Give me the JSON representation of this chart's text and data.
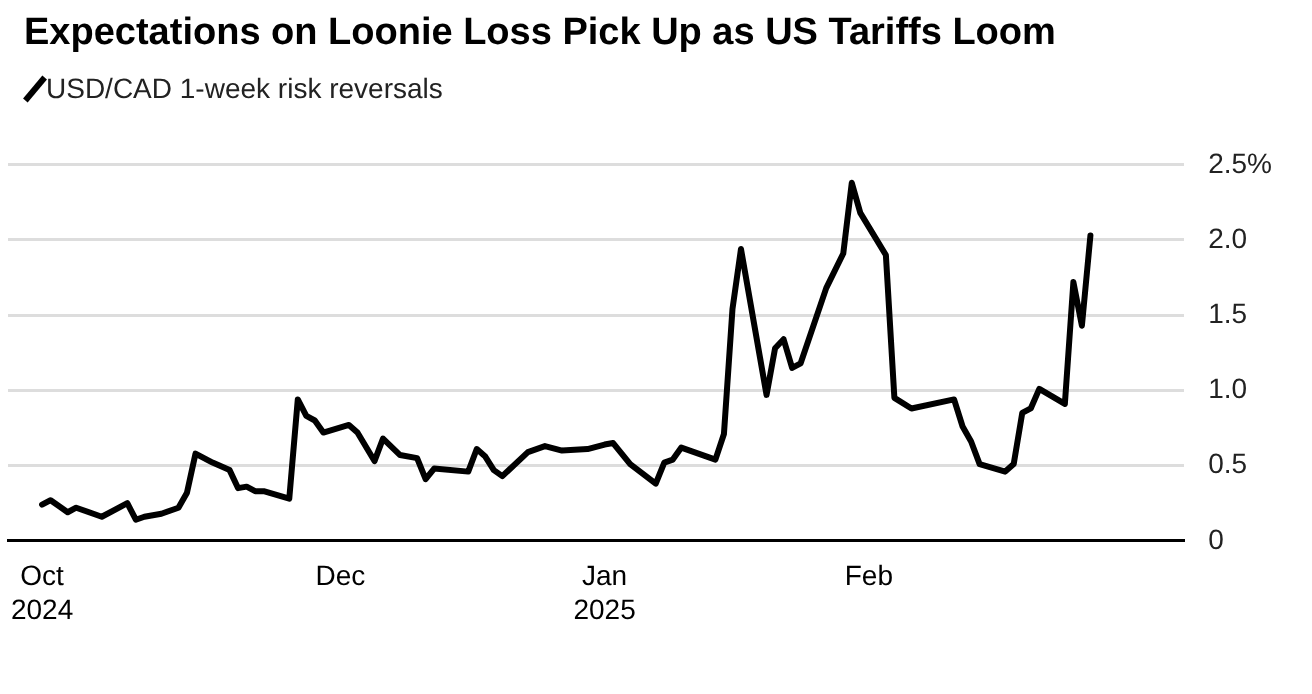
{
  "chart_data": {
    "type": "line",
    "title": "Expectations on Loonie Loss Pick Up as US Tariffs Loom",
    "legend": "top left",
    "grid": "y",
    "marker": "none",
    "line_style": "solid",
    "xlim": [
      "2024-10-23",
      "2025-03-10"
    ],
    "xticks": [
      {
        "value": "2024-10-27",
        "label": "Oct\n2024"
      },
      {
        "value": "2024-12-01",
        "label": "Dec"
      },
      {
        "value": "2025-01-01",
        "label": "Jan\n2025"
      },
      {
        "value": "2025-02-01",
        "label": "Feb"
      }
    ],
    "ylim": [
      0,
      2.5
    ],
    "yticks": [
      0,
      {
        "value": 0.5,
        "label": "0.5"
      },
      {
        "value": 1,
        "label": "1.0"
      },
      {
        "value": 1.5,
        "label": "1.5"
      },
      {
        "value": 2,
        "label": "2.0"
      },
      {
        "value": 2.5,
        "label": "2.5%"
      }
    ],
    "series": [
      {
        "name": "USD/CAD 1-week risk reversals",
        "color": "#000000",
        "x": [
          "2024-10-27",
          "2024-10-28",
          "2024-10-30",
          "2024-10-31",
          "2024-11-03",
          "2024-11-06",
          "2024-11-07",
          "2024-11-08",
          "2024-11-10",
          "2024-11-12",
          "2024-11-13",
          "2024-11-14",
          "2024-11-16",
          "2024-11-18",
          "2024-11-19",
          "2024-11-20",
          "2024-11-21",
          "2024-11-22",
          "2024-11-25",
          "2024-11-26",
          "2024-11-27",
          "2024-11-28",
          "2024-11-29",
          "2024-12-02",
          "2024-12-03",
          "2024-12-05",
          "2024-12-06",
          "2024-12-08",
          "2024-12-10",
          "2024-12-11",
          "2024-12-12",
          "2024-12-16",
          "2024-12-17",
          "2024-12-18",
          "2024-12-19",
          "2024-12-20",
          "2024-12-23",
          "2024-12-25",
          "2024-12-27",
          "2024-12-30",
          "2025-01-01",
          "2025-01-02",
          "2025-01-04",
          "2025-01-07",
          "2025-01-08",
          "2025-01-09",
          "2025-01-10",
          "2025-01-14",
          "2025-01-15",
          "2025-01-16",
          "2025-01-17",
          "2025-01-20",
          "2025-01-21",
          "2025-01-22",
          "2025-01-23",
          "2025-01-24",
          "2025-01-27",
          "2025-01-29",
          "2025-01-30",
          "2025-01-31",
          "2025-02-03",
          "2025-02-04",
          "2025-02-06",
          "2025-02-11",
          "2025-02-12",
          "2025-02-13",
          "2025-02-14",
          "2025-02-17",
          "2025-02-18",
          "2025-02-19",
          "2025-02-20",
          "2025-02-21",
          "2025-02-24",
          "2025-02-25",
          "2025-02-26",
          "2025-02-27"
        ],
        "values": [
          0.24,
          0.27,
          0.19,
          0.22,
          0.16,
          0.25,
          0.14,
          0.16,
          0.18,
          0.22,
          0.32,
          0.58,
          0.52,
          0.47,
          0.35,
          0.36,
          0.33,
          0.33,
          0.28,
          0.94,
          0.83,
          0.8,
          0.72,
          0.77,
          0.72,
          0.53,
          0.68,
          0.57,
          0.55,
          0.41,
          0.48,
          0.46,
          0.61,
          0.56,
          0.47,
          0.43,
          0.59,
          0.63,
          0.6,
          0.61,
          0.64,
          0.65,
          0.51,
          0.38,
          0.52,
          0.54,
          0.62,
          0.54,
          0.71,
          1.54,
          1.94,
          0.97,
          1.28,
          1.34,
          1.15,
          1.18,
          1.68,
          1.91,
          2.38,
          2.18,
          1.9,
          0.95,
          0.88,
          0.94,
          0.76,
          0.66,
          0.51,
          0.46,
          0.51,
          0.85,
          0.88,
          1.01,
          0.91,
          1.72,
          1.43,
          2.03
        ]
      }
    ]
  }
}
